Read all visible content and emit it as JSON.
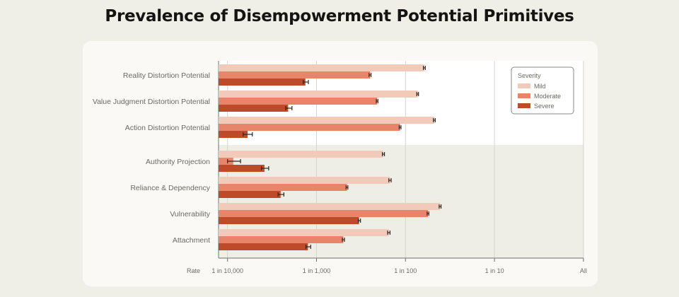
{
  "title": "Prevalence of Disempowerment Potential Primitives",
  "chart_data": {
    "type": "bar",
    "orientation": "horizontal",
    "title": "Prevalence of Disempowerment Potential Primitives",
    "xlabel": "Rate",
    "x_scale": "log",
    "xlim": [
      8e-05,
      1
    ],
    "x_ticks": [
      {
        "value": 0.0001,
        "label": "1 in 10,000"
      },
      {
        "value": 0.001,
        "label": "1 in 1,000"
      },
      {
        "value": 0.01,
        "label": "1 in 100"
      },
      {
        "value": 0.1,
        "label": "1 in 10"
      },
      {
        "value": 1,
        "label": "All"
      }
    ],
    "grid": true,
    "legend": {
      "title": "Severity",
      "placement": "top-right"
    },
    "categories": [
      "Reality Distortion Potential",
      "Value Judgment Distortion Potential",
      "Action Distortion Potential",
      "Authority Projection",
      "Reliance & Dependency",
      "Vulnerability",
      "Attachment"
    ],
    "category_groups": [
      [
        0,
        1,
        2
      ],
      [
        3,
        4,
        5,
        6
      ]
    ],
    "series": [
      {
        "name": "Mild",
        "color": "#f2cab9",
        "values": [
          0.0163,
          0.0137,
          0.0211,
          0.0056,
          0.0067,
          0.0245,
          0.0065
        ],
        "ci": [
          [
            0.0159,
            0.0167
          ],
          [
            0.0134,
            0.014
          ],
          [
            0.0206,
            0.0216
          ],
          [
            0.0055,
            0.0058
          ],
          [
            0.0065,
            0.0069
          ],
          [
            0.0239,
            0.0251
          ],
          [
            0.0063,
            0.0067
          ]
        ]
      },
      {
        "name": "Moderate",
        "color": "#e8846a",
        "values": [
          0.004,
          0.0048,
          0.0087,
          0.000116,
          0.0022,
          0.0179,
          0.002
        ],
        "ci": [
          [
            0.0039,
            0.0041
          ],
          [
            0.0047,
            0.0049
          ],
          [
            0.0085,
            0.0089
          ],
          [
            0.0001,
            0.00014
          ],
          [
            0.00215,
            0.00225
          ],
          [
            0.0175,
            0.0183
          ],
          [
            0.00195,
            0.00206
          ]
        ]
      },
      {
        "name": "Severe",
        "color": "#bd4b2a",
        "values": [
          0.00075,
          0.00048,
          0.000168,
          0.00026,
          0.000395,
          0.003,
          0.0008
        ],
        "ci": [
          [
            0.00071,
            0.00081
          ],
          [
            0.00045,
            0.00053
          ],
          [
            0.00015,
            0.00019
          ],
          [
            0.00024,
            0.00029
          ],
          [
            0.00037,
            0.00043
          ],
          [
            0.00295,
            0.00312
          ],
          [
            0.00076,
            0.00086
          ]
        ]
      }
    ]
  }
}
